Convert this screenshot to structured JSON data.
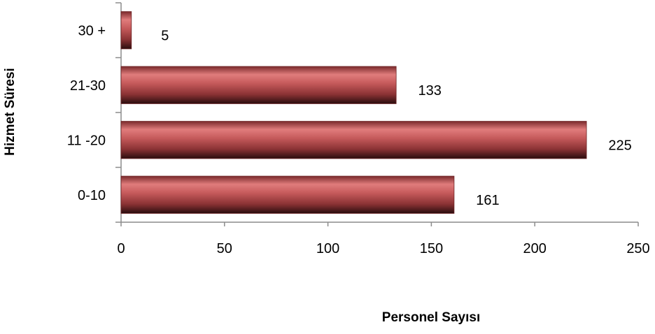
{
  "chart_data": {
    "type": "bar",
    "orientation": "horizontal",
    "categories": [
      "0-10",
      "11 -20",
      "21-30",
      "30 +"
    ],
    "values": [
      161,
      225,
      133,
      5
    ],
    "data_labels": [
      "161",
      "225",
      "133",
      "5"
    ],
    "xlabel": "Personel Sayısı",
    "ylabel": "Hizmet Süresi",
    "xlim": [
      0,
      250
    ],
    "xticks": [
      0,
      50,
      100,
      150,
      200,
      250
    ],
    "xtick_labels": [
      "0",
      "50",
      "100",
      "150",
      "200",
      "250"
    ],
    "grid": false,
    "legend": "none",
    "bar_color": "#b5474a"
  }
}
